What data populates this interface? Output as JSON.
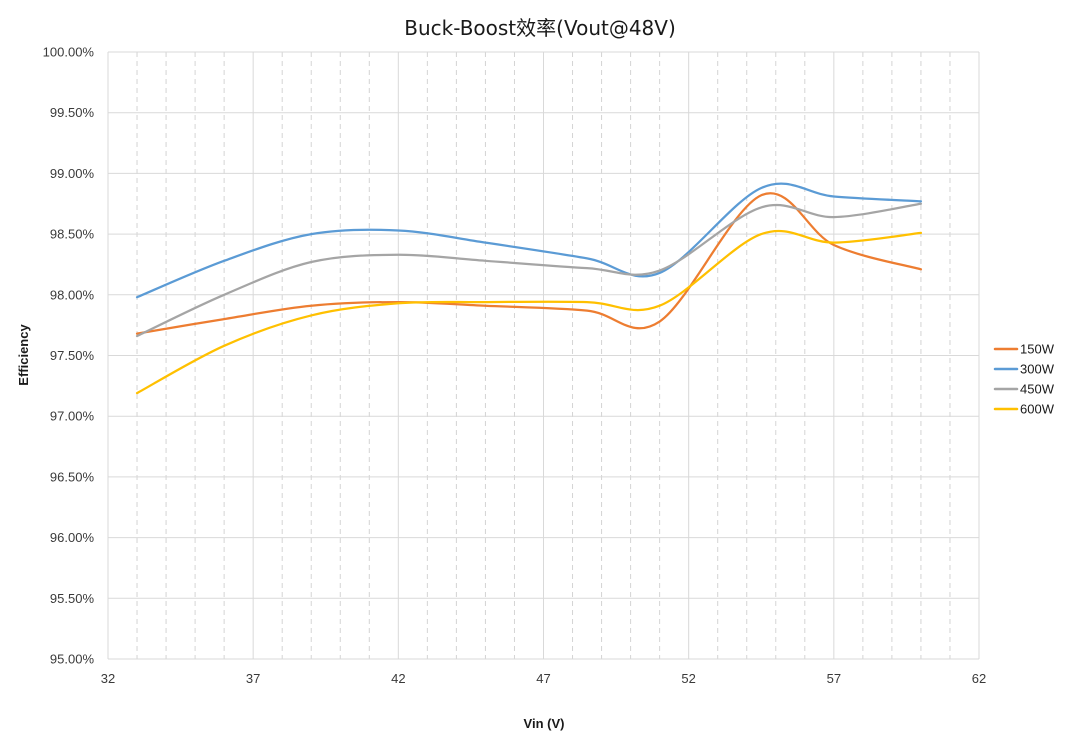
{
  "chart_data": {
    "type": "line",
    "title": "Buck-Boost效率(Vout@48V)",
    "xlabel": "Vin (V)",
    "ylabel": "Efficiency",
    "xlim": [
      32,
      62
    ],
    "ylim": [
      95.0,
      100.0
    ],
    "x_ticks": [
      32,
      37,
      42,
      47,
      52,
      57,
      62
    ],
    "y_ticks": [
      95.0,
      95.5,
      96.0,
      96.5,
      97.0,
      97.5,
      98.0,
      98.5,
      99.0,
      99.5,
      100.0
    ],
    "y_tick_labels": [
      "95.00%",
      "95.50%",
      "96.00%",
      "96.50%",
      "97.00%",
      "97.50%",
      "98.00%",
      "98.50%",
      "99.00%",
      "99.50%",
      "100.00%"
    ],
    "x_minor_step": 1,
    "grid": true,
    "legend_position": "right",
    "smooth": true,
    "x": [
      33,
      36,
      39,
      42,
      45,
      48.5,
      51,
      54.5,
      57,
      60
    ],
    "series": [
      {
        "name": "150W",
        "color": "#ED7D31",
        "values": [
          97.68,
          97.8,
          97.91,
          97.94,
          97.91,
          97.87,
          97.78,
          98.82,
          98.41,
          98.21
        ]
      },
      {
        "name": "300W",
        "color": "#5B9BD5",
        "values": [
          97.98,
          98.28,
          98.5,
          98.53,
          98.43,
          98.3,
          98.18,
          98.88,
          98.81,
          98.77
        ]
      },
      {
        "name": "450W",
        "color": "#A5A5A5",
        "values": [
          97.66,
          98.0,
          98.27,
          98.33,
          98.28,
          98.22,
          98.2,
          98.72,
          98.64,
          98.75
        ]
      },
      {
        "name": "600W",
        "color": "#FFC000",
        "values": [
          97.19,
          97.58,
          97.83,
          97.93,
          97.94,
          97.94,
          97.91,
          98.5,
          98.43,
          98.51
        ]
      }
    ]
  }
}
